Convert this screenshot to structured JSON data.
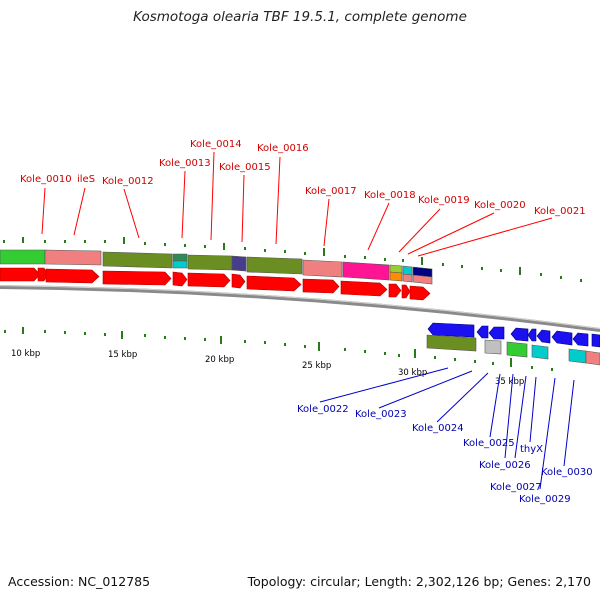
{
  "title": "Kosmotoga olearia TBF 19.5.1, complete genome",
  "footer": {
    "accession": "Accession: NC_012785",
    "topology": "Topology: circular; Length: 2,302,126 bp; Genes: 2,170"
  },
  "colors": {
    "forward_gene": "#ff0000",
    "reverse_gene": "#1a10f0",
    "forward_label": "#d00000",
    "reverse_label": "#0000b0",
    "backbone": "#8a8a8a",
    "tick": "#2a7a1a"
  },
  "scale_labels": [
    "10 kbp",
    "15 kbp",
    "20 kbp",
    "25 kbp",
    "30 kbp",
    "35 kbp"
  ],
  "forward_labels": [
    "Kole_0010",
    "ileS",
    "Kole_0012",
    "Kole_0013",
    "Kole_0014",
    "Kole_0015",
    "Kole_0016",
    "Kole_0017",
    "Kole_0018",
    "Kole_0019",
    "Kole_0020",
    "Kole_0021"
  ],
  "reverse_labels": [
    "Kole_0022",
    "Kole_0023",
    "Kole_0024",
    "Kole_0025",
    "Kole_0026",
    "thyX",
    "Kole_0027",
    "Kole_0029",
    "Kole_0030"
  ]
}
